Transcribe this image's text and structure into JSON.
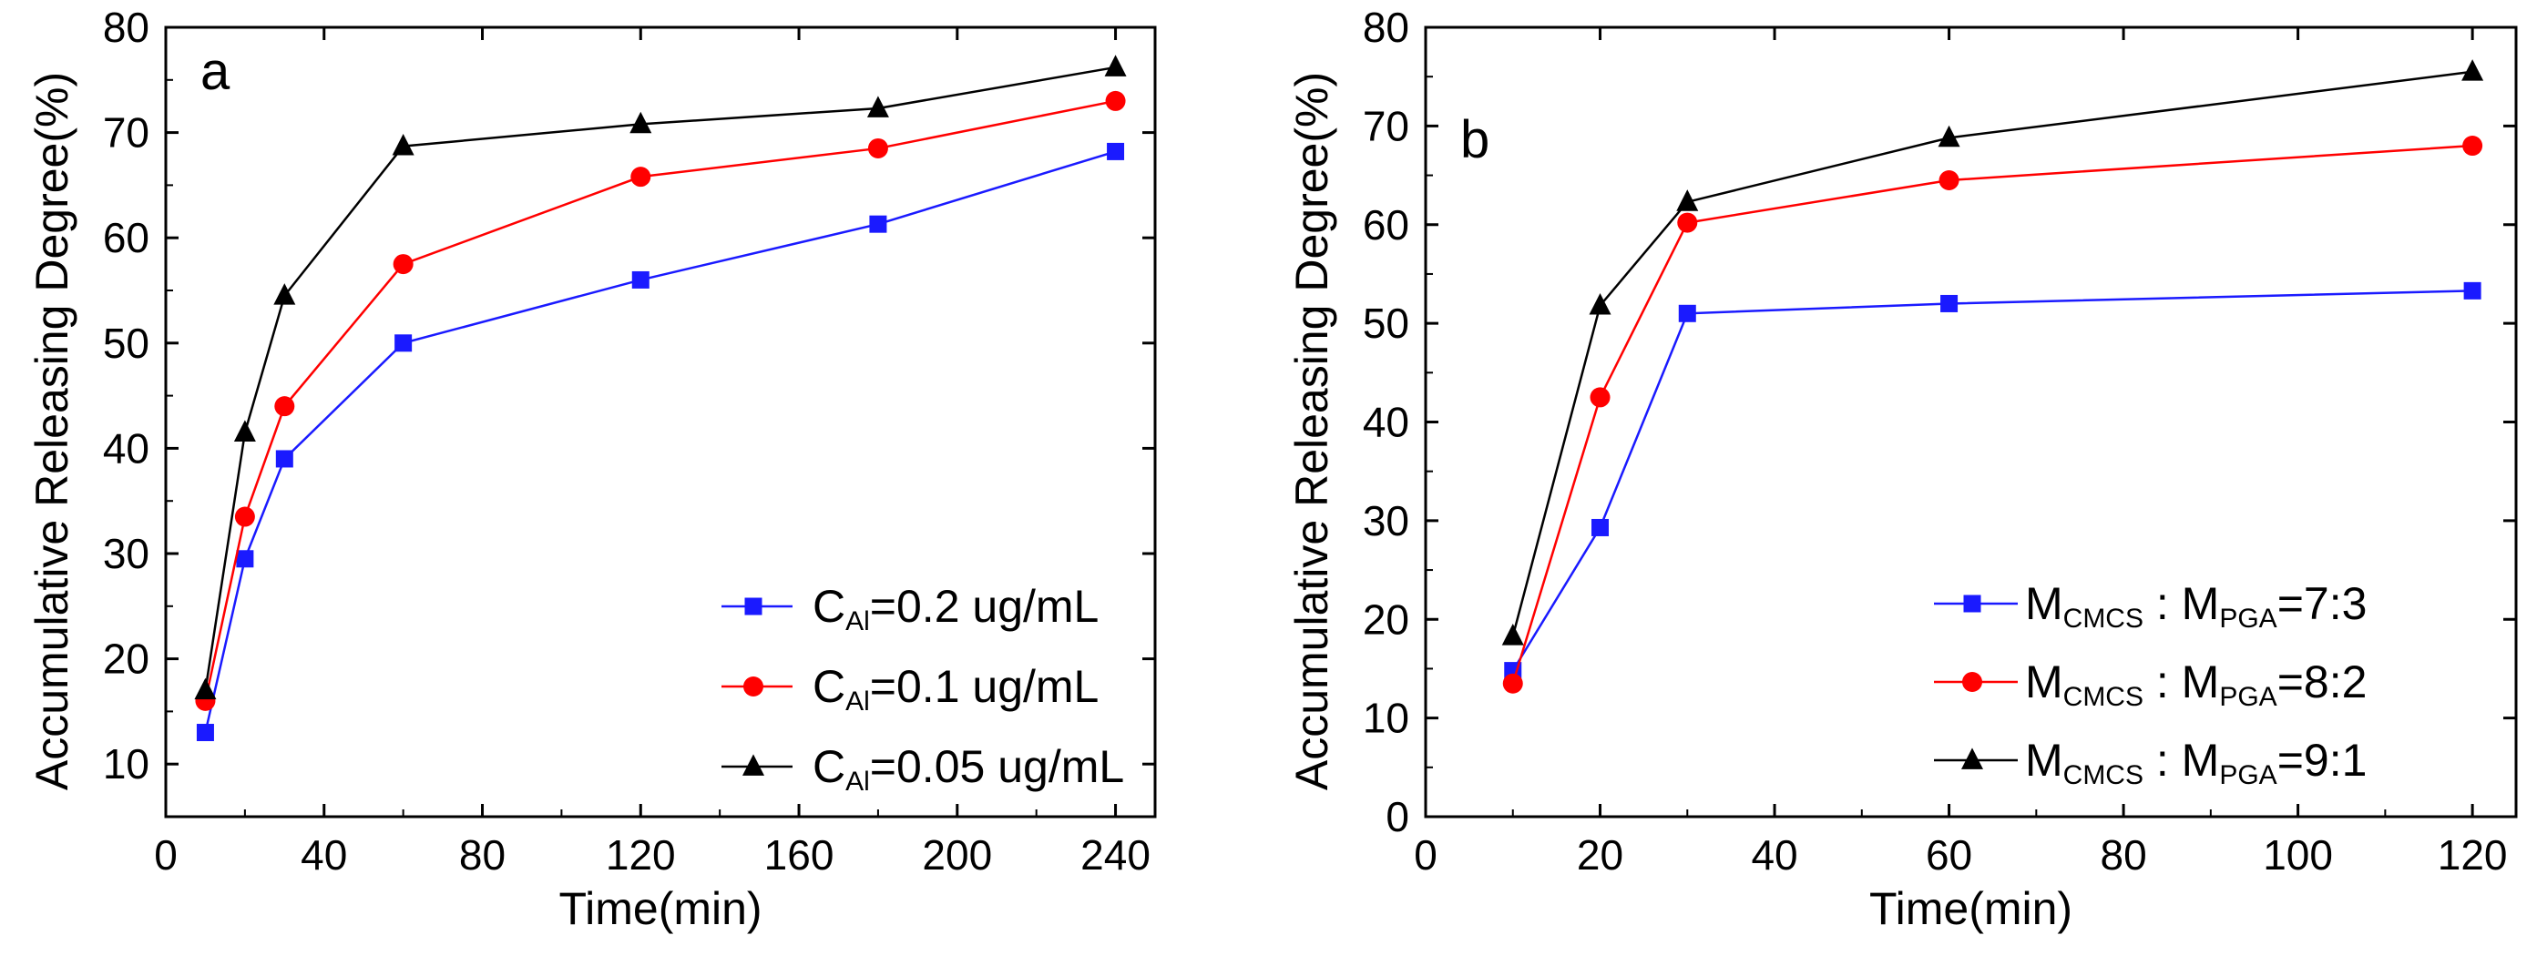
{
  "chart_data": [
    {
      "id": "a",
      "type": "line",
      "panel_label": "a",
      "xlabel": "Time(min)",
      "ylabel": "Accumulative Releasing Degree(%)",
      "xlim": [
        0,
        250
      ],
      "ylim": [
        5,
        80
      ],
      "xticks": [
        0,
        40,
        80,
        120,
        160,
        200,
        240
      ],
      "yticks": [
        10,
        20,
        30,
        40,
        50,
        60,
        70,
        80
      ],
      "legend_position": "lower-right",
      "x": [
        10,
        20,
        30,
        60,
        120,
        180,
        240
      ],
      "series": [
        {
          "name": "C_Al=0.2 ug/mL",
          "legend_main": "C",
          "legend_sub": "Al",
          "legend_rest": "=0.2 ug/mL",
          "color": "#1a1aff",
          "marker": "square",
          "values": [
            13,
            29.5,
            39,
            50,
            56,
            61.3,
            68.2
          ]
        },
        {
          "name": "C_Al=0.1 ug/mL",
          "legend_main": "C",
          "legend_sub": "Al",
          "legend_rest": "=0.1 ug/mL",
          "color": "#ff0000",
          "marker": "circle",
          "values": [
            16,
            33.5,
            44,
            57.5,
            65.8,
            68.5,
            73
          ]
        },
        {
          "name": "C_Al=0.05 ug/mL",
          "legend_main": "C",
          "legend_sub": "Al",
          "legend_rest": "=0.05 ug/mL",
          "color": "#000000",
          "marker": "triangle",
          "values": [
            17,
            41.5,
            54.5,
            68.7,
            70.8,
            72.3,
            76.2
          ]
        }
      ]
    },
    {
      "id": "b",
      "type": "line",
      "panel_label": "b",
      "xlabel": "Time(min)",
      "ylabel": "Accumulative Releasing Degree(%)",
      "xlim": [
        0,
        125
      ],
      "ylim": [
        0,
        80
      ],
      "xticks": [
        0,
        20,
        40,
        60,
        80,
        100,
        120
      ],
      "yticks": [
        0,
        10,
        20,
        30,
        40,
        50,
        60,
        70,
        80
      ],
      "legend_position": "lower-right",
      "x": [
        10,
        20,
        30,
        60,
        120
      ],
      "series": [
        {
          "name": "M_CMCS : M_PGA=7:3",
          "legend_main": "M",
          "legend_sub": "CMCS",
          "legend_mid": " : M",
          "legend_sub2": "PGA",
          "legend_rest": "=7:3",
          "color": "#1a1aff",
          "marker": "square",
          "values": [
            14.8,
            29.3,
            51,
            52,
            53.3
          ]
        },
        {
          "name": "M_CMCS : M_PGA=8:2",
          "legend_main": "M",
          "legend_sub": "CMCS",
          "legend_mid": " : M",
          "legend_sub2": "PGA",
          "legend_rest": "=8:2",
          "color": "#ff0000",
          "marker": "circle",
          "values": [
            13.5,
            42.5,
            60.2,
            64.5,
            68
          ]
        },
        {
          "name": "M_CMCS : M_PGA=9:1",
          "legend_main": "M",
          "legend_sub": "CMCS",
          "legend_mid": " : M",
          "legend_sub2": "PGA",
          "legend_rest": "=9:1",
          "color": "#000000",
          "marker": "triangle",
          "values": [
            18.3,
            51.8,
            62.3,
            68.8,
            75.5
          ]
        }
      ]
    }
  ]
}
